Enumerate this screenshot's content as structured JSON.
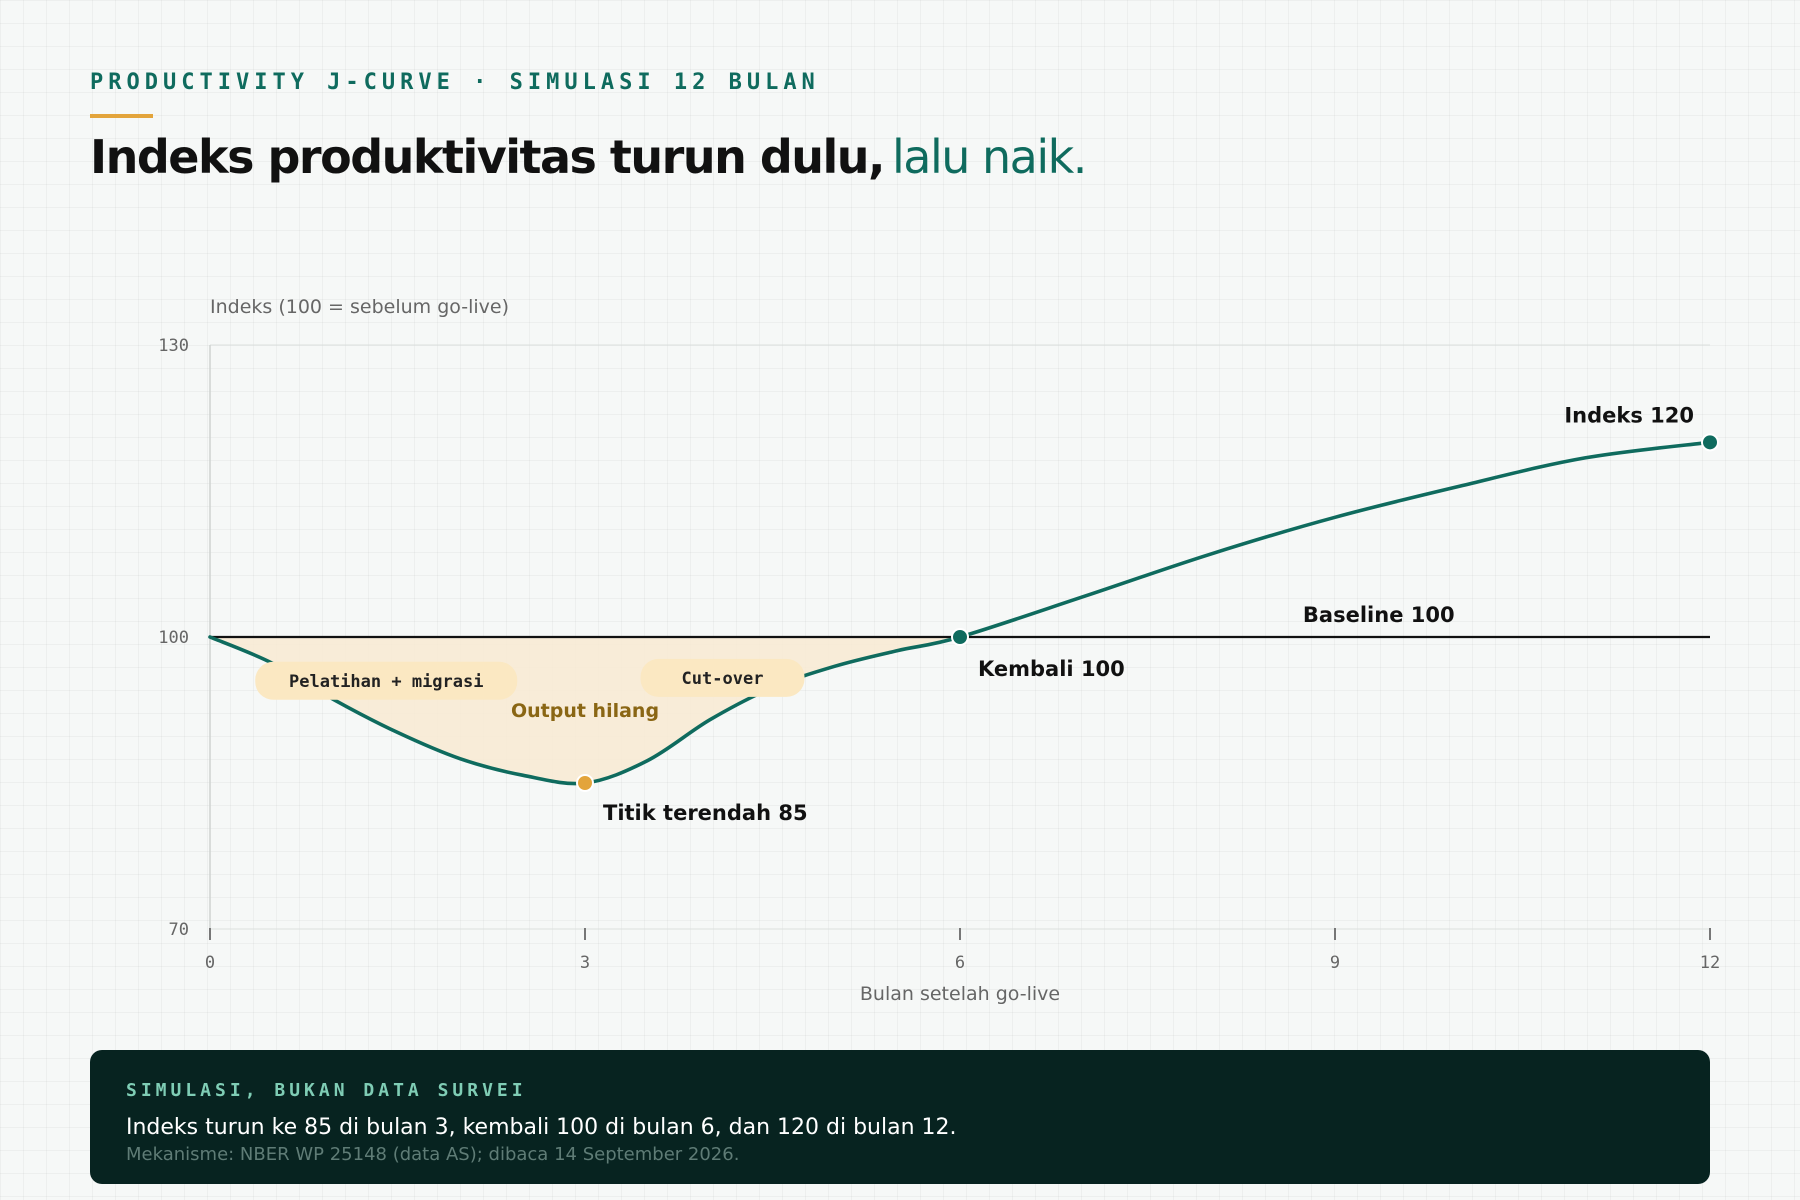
{
  "header": {
    "eyebrow": "PRODUCTIVITY J-CURVE · SIMULASI 12 BULAN",
    "title_strong": "Indeks produktivitas turun dulu,",
    "title_accent": "lalu naik."
  },
  "colors": {
    "accent": "#0f6b5e",
    "gold": "#e3a43b",
    "fill": "#f8ead2",
    "pill": "#fbe8c2",
    "footer_bg": "#072320"
  },
  "chart_data": {
    "type": "line",
    "title": "",
    "xlabel": "Bulan setelah go-live",
    "ylabel": "Indeks (100 = sebelum go-live)",
    "xlim": [
      0,
      12
    ],
    "ylim": [
      70,
      130
    ],
    "x_ticks": [
      "0",
      "3",
      "6",
      "9",
      "12"
    ],
    "y_ticks": [
      "130",
      "100",
      "70"
    ],
    "grid": "horizontal",
    "baseline": {
      "value": 100,
      "label": "Baseline 100"
    },
    "series": [
      {
        "x": [
          0,
          0.5,
          1,
          1.5,
          2,
          2.5,
          3,
          3.5,
          4,
          4.5,
          5,
          5.5,
          6,
          7,
          8,
          9,
          10,
          11,
          12
        ],
        "values": [
          100,
          97.3,
          93.5,
          90.2,
          87.5,
          85.8,
          85,
          87.3,
          91.5,
          94.8,
          97,
          98.6,
          100,
          104.2,
          108.5,
          112.3,
          115.5,
          118.4,
          120
        ]
      }
    ],
    "highlighted_points": [
      {
        "x": 3,
        "y": 85,
        "label": "Titik terendah 85",
        "color": "#e3a43b"
      },
      {
        "x": 6,
        "y": 100,
        "label": "Kembali 100",
        "color": "#0f6b5e"
      },
      {
        "x": 12,
        "y": 120,
        "label": "Indeks 120",
        "color": "#0f6b5e"
      }
    ],
    "area_label": "Output hilang",
    "phases": [
      "Pelatihan + migrasi",
      "Cut-over"
    ]
  },
  "footer": {
    "eyebrow": "SIMULASI, BUKAN DATA SURVEI",
    "text": "Indeks turun ke 85 di bulan 3, kembali 100 di bulan 6, dan 120 di bulan 12.",
    "note": "Mekanisme: NBER WP 25148 (data AS); dibaca 14 September 2026."
  }
}
